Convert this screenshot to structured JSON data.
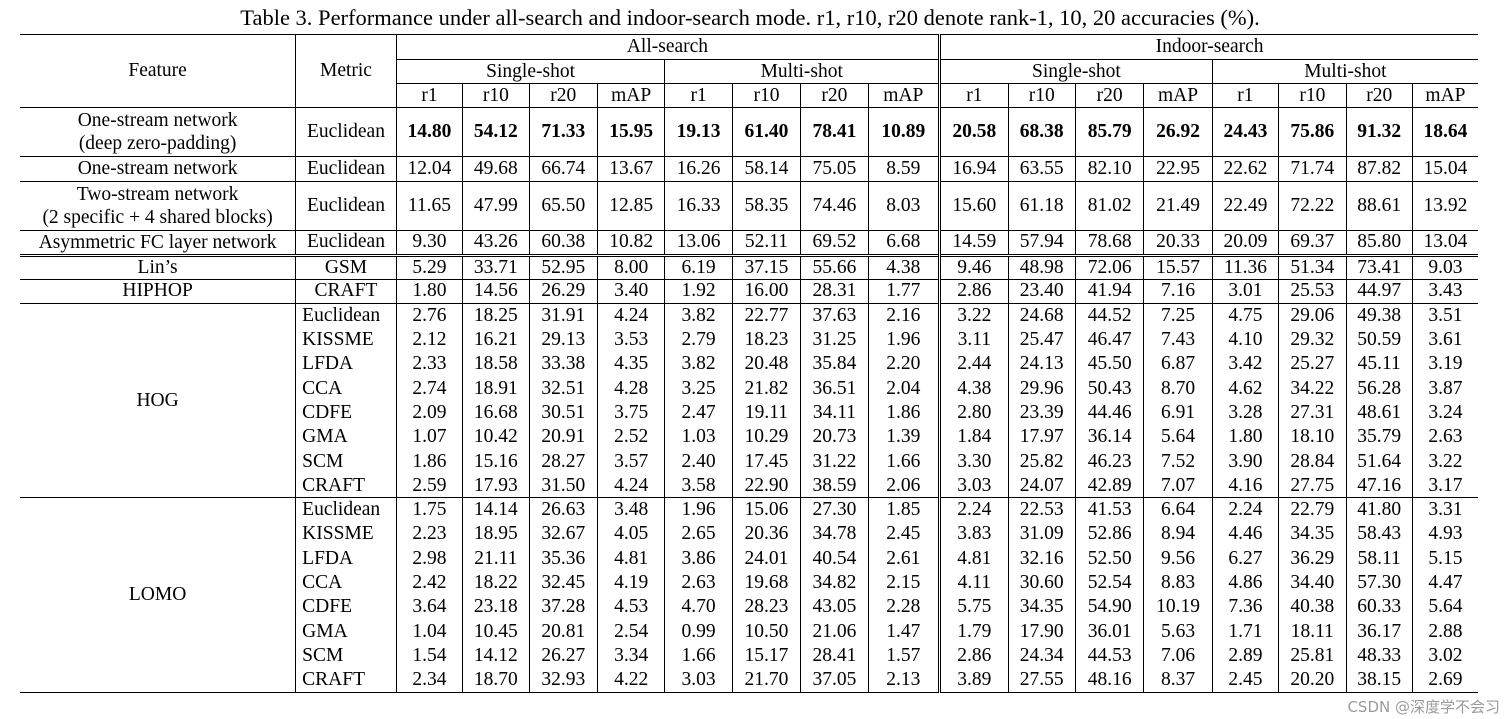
{
  "caption": "Table 3. Performance under all-search and indoor-search mode. r1, r10, r20 denote rank-1, 10, 20 accuracies (%).",
  "header": {
    "feature": "Feature",
    "metric": "Metric",
    "modes": [
      "All-search",
      "Indoor-search"
    ],
    "shots": [
      "Single-shot",
      "Multi-shot",
      "Single-shot",
      "Multi-shot"
    ],
    "cols": [
      "r1",
      "r10",
      "r20",
      "mAP",
      "r1",
      "r10",
      "r20",
      "mAP",
      "r1",
      "r10",
      "r20",
      "mAP",
      "r1",
      "r10",
      "r20",
      "mAP"
    ]
  },
  "ours": [
    {
      "feature": [
        "One-stream network",
        "(deep zero-padding)"
      ],
      "metric": "Euclidean",
      "bold": true,
      "values": [
        "14.80",
        "54.12",
        "71.33",
        "15.95",
        "19.13",
        "61.40",
        "78.41",
        "10.89",
        "20.58",
        "68.38",
        "85.79",
        "26.92",
        "24.43",
        "75.86",
        "91.32",
        "18.64"
      ]
    },
    {
      "feature": [
        "One-stream network"
      ],
      "metric": "Euclidean",
      "bold": false,
      "values": [
        "12.04",
        "49.68",
        "66.74",
        "13.67",
        "16.26",
        "58.14",
        "75.05",
        "8.59",
        "16.94",
        "63.55",
        "82.10",
        "22.95",
        "22.62",
        "71.74",
        "87.82",
        "15.04"
      ]
    },
    {
      "feature": [
        "Two-stream network",
        "(2 specific + 4 shared blocks)"
      ],
      "metric": "Euclidean",
      "bold": false,
      "values": [
        "11.65",
        "47.99",
        "65.50",
        "12.85",
        "16.33",
        "58.35",
        "74.46",
        "8.03",
        "15.60",
        "61.18",
        "81.02",
        "21.49",
        "22.49",
        "72.22",
        "88.61",
        "13.92"
      ]
    },
    {
      "feature": [
        "Asymmetric FC layer network"
      ],
      "metric": "Euclidean",
      "bold": false,
      "values": [
        "9.30",
        "43.26",
        "60.38",
        "10.82",
        "13.06",
        "52.11",
        "69.52",
        "6.68",
        "14.59",
        "57.94",
        "78.68",
        "20.33",
        "20.09",
        "69.37",
        "85.80",
        "13.04"
      ]
    }
  ],
  "baselines": [
    {
      "feature": "Lin’s",
      "rows": [
        {
          "metric": "GSM",
          "values": [
            "5.29",
            "33.71",
            "52.95",
            "8.00",
            "6.19",
            "37.15",
            "55.66",
            "4.38",
            "9.46",
            "48.98",
            "72.06",
            "15.57",
            "11.36",
            "51.34",
            "73.41",
            "9.03"
          ]
        }
      ]
    },
    {
      "feature": "HIPHOP",
      "rows": [
        {
          "metric": "CRAFT",
          "values": [
            "1.80",
            "14.56",
            "26.29",
            "3.40",
            "1.92",
            "16.00",
            "28.31",
            "1.77",
            "2.86",
            "23.40",
            "41.94",
            "7.16",
            "3.01",
            "25.53",
            "44.97",
            "3.43"
          ]
        }
      ]
    },
    {
      "feature": "HOG",
      "rows": [
        {
          "metric": "Euclidean",
          "values": [
            "2.76",
            "18.25",
            "31.91",
            "4.24",
            "3.82",
            "22.77",
            "37.63",
            "2.16",
            "3.22",
            "24.68",
            "44.52",
            "7.25",
            "4.75",
            "29.06",
            "49.38",
            "3.51"
          ]
        },
        {
          "metric": "KISSME",
          "values": [
            "2.12",
            "16.21",
            "29.13",
            "3.53",
            "2.79",
            "18.23",
            "31.25",
            "1.96",
            "3.11",
            "25.47",
            "46.47",
            "7.43",
            "4.10",
            "29.32",
            "50.59",
            "3.61"
          ]
        },
        {
          "metric": "LFDA",
          "values": [
            "2.33",
            "18.58",
            "33.38",
            "4.35",
            "3.82",
            "20.48",
            "35.84",
            "2.20",
            "2.44",
            "24.13",
            "45.50",
            "6.87",
            "3.42",
            "25.27",
            "45.11",
            "3.19"
          ]
        },
        {
          "metric": "CCA",
          "values": [
            "2.74",
            "18.91",
            "32.51",
            "4.28",
            "3.25",
            "21.82",
            "36.51",
            "2.04",
            "4.38",
            "29.96",
            "50.43",
            "8.70",
            "4.62",
            "34.22",
            "56.28",
            "3.87"
          ]
        },
        {
          "metric": "CDFE",
          "values": [
            "2.09",
            "16.68",
            "30.51",
            "3.75",
            "2.47",
            "19.11",
            "34.11",
            "1.86",
            "2.80",
            "23.39",
            "44.46",
            "6.91",
            "3.28",
            "27.31",
            "48.61",
            "3.24"
          ]
        },
        {
          "metric": "GMA",
          "values": [
            "1.07",
            "10.42",
            "20.91",
            "2.52",
            "1.03",
            "10.29",
            "20.73",
            "1.39",
            "1.84",
            "17.97",
            "36.14",
            "5.64",
            "1.80",
            "18.10",
            "35.79",
            "2.63"
          ]
        },
        {
          "metric": "SCM",
          "values": [
            "1.86",
            "15.16",
            "28.27",
            "3.57",
            "2.40",
            "17.45",
            "31.22",
            "1.66",
            "3.30",
            "25.82",
            "46.23",
            "7.52",
            "3.90",
            "28.84",
            "51.64",
            "3.22"
          ]
        },
        {
          "metric": "CRAFT",
          "values": [
            "2.59",
            "17.93",
            "31.50",
            "4.24",
            "3.58",
            "22.90",
            "38.59",
            "2.06",
            "3.03",
            "24.07",
            "42.89",
            "7.07",
            "4.16",
            "27.75",
            "47.16",
            "3.17"
          ]
        }
      ]
    },
    {
      "feature": "LOMO",
      "rows": [
        {
          "metric": "Euclidean",
          "values": [
            "1.75",
            "14.14",
            "26.63",
            "3.48",
            "1.96",
            "15.06",
            "27.30",
            "1.85",
            "2.24",
            "22.53",
            "41.53",
            "6.64",
            "2.24",
            "22.79",
            "41.80",
            "3.31"
          ]
        },
        {
          "metric": "KISSME",
          "values": [
            "2.23",
            "18.95",
            "32.67",
            "4.05",
            "2.65",
            "20.36",
            "34.78",
            "2.45",
            "3.83",
            "31.09",
            "52.86",
            "8.94",
            "4.46",
            "34.35",
            "58.43",
            "4.93"
          ]
        },
        {
          "metric": "LFDA",
          "values": [
            "2.98",
            "21.11",
            "35.36",
            "4.81",
            "3.86",
            "24.01",
            "40.54",
            "2.61",
            "4.81",
            "32.16",
            "52.50",
            "9.56",
            "6.27",
            "36.29",
            "58.11",
            "5.15"
          ]
        },
        {
          "metric": "CCA",
          "values": [
            "2.42",
            "18.22",
            "32.45",
            "4.19",
            "2.63",
            "19.68",
            "34.82",
            "2.15",
            "4.11",
            "30.60",
            "52.54",
            "8.83",
            "4.86",
            "34.40",
            "57.30",
            "4.47"
          ]
        },
        {
          "metric": "CDFE",
          "values": [
            "3.64",
            "23.18",
            "37.28",
            "4.53",
            "4.70",
            "28.23",
            "43.05",
            "2.28",
            "5.75",
            "34.35",
            "54.90",
            "10.19",
            "7.36",
            "40.38",
            "60.33",
            "5.64"
          ]
        },
        {
          "metric": "GMA",
          "values": [
            "1.04",
            "10.45",
            "20.81",
            "2.54",
            "0.99",
            "10.50",
            "21.06",
            "1.47",
            "1.79",
            "17.90",
            "36.01",
            "5.63",
            "1.71",
            "18.11",
            "36.17",
            "2.88"
          ]
        },
        {
          "metric": "SCM",
          "values": [
            "1.54",
            "14.12",
            "26.27",
            "3.34",
            "1.66",
            "15.17",
            "28.41",
            "1.57",
            "2.86",
            "24.34",
            "44.53",
            "7.06",
            "2.89",
            "25.81",
            "48.33",
            "3.02"
          ]
        },
        {
          "metric": "CRAFT",
          "values": [
            "2.34",
            "18.70",
            "32.93",
            "4.22",
            "3.03",
            "21.70",
            "37.05",
            "2.13",
            "3.89",
            "27.55",
            "48.16",
            "8.37",
            "2.45",
            "20.20",
            "38.15",
            "2.69"
          ]
        }
      ]
    }
  ],
  "watermark": "CSDN @深度学不会习"
}
